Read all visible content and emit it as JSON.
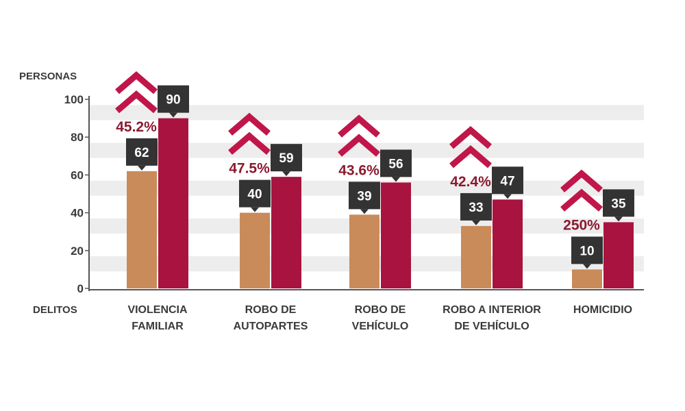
{
  "chart_data": {
    "type": "bar",
    "ylabel": "PERSONAS",
    "xlabel": "DELITOS",
    "ylim": [
      0,
      100
    ],
    "yticks": [
      "0",
      "20",
      "40",
      "60",
      "80",
      "100"
    ],
    "grid": "horizontal bands",
    "categories": [
      [
        "VIOLENCIA",
        "FAMILIAR"
      ],
      [
        "ROBO DE",
        "AUTOPARTES"
      ],
      [
        "ROBO DE",
        "VEHÍCULO"
      ],
      [
        "ROBO A INTERIOR",
        "DE VEHÍCULO"
      ],
      [
        "HOMICIDIO"
      ]
    ],
    "series": [
      {
        "values": [
          62,
          40,
          39,
          33,
          10
        ],
        "labels": [
          "62",
          "40",
          "39",
          "33",
          "10"
        ]
      },
      {
        "values": [
          90,
          59,
          56,
          47,
          35
        ],
        "labels": [
          "90",
          "59",
          "56",
          "47",
          "35"
        ]
      }
    ],
    "annotations": [
      "45.2%",
      "47.5%",
      "43.6%",
      "42.4%",
      "250%"
    ],
    "annotation_icon": "double-chevron-up-icon"
  },
  "colors": {
    "series_1": "#c98b5a",
    "series_2": "#a8143f",
    "label_box": "#333333",
    "annotation_text": "#8b1a2f",
    "chevron": "#c0164a",
    "band": "#ededed",
    "axis": "#555555",
    "text": "#3a3a3a"
  }
}
